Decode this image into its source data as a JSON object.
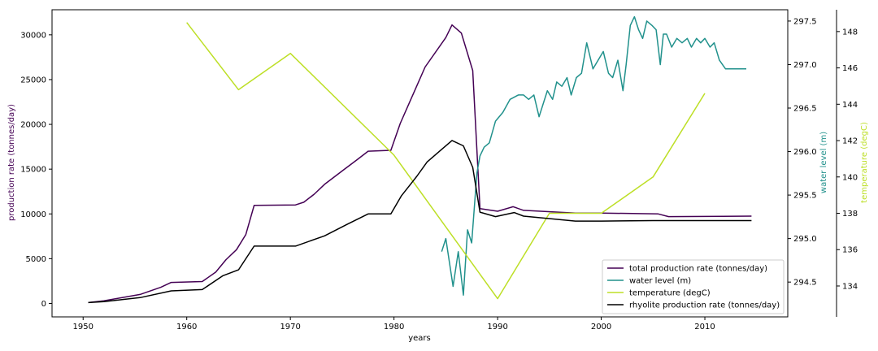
{
  "chart_data": {
    "type": "line",
    "xlabel": "years",
    "x_ticks": [
      1950,
      1960,
      1970,
      1980,
      1990,
      2000,
      2010
    ],
    "xlim": [
      1947,
      2018
    ],
    "axes": {
      "left": {
        "label": "production rate (tonnes/day)",
        "color": "#440154",
        "ylim": [
          -1500,
          32800
        ],
        "ticks": [
          0,
          5000,
          10000,
          15000,
          20000,
          25000,
          30000
        ]
      },
      "right1": {
        "label": "water level (m)",
        "color": "#21918c",
        "ylim": [
          294.1,
          297.63
        ],
        "ticks": [
          294.5,
          295.0,
          295.5,
          296.0,
          296.5,
          297.0,
          297.5
        ]
      },
      "right2": {
        "label": "temperature (degC)",
        "color": "#bddf26",
        "ylim": [
          132.3,
          149.2
        ],
        "ticks": [
          134,
          136,
          138,
          140,
          142,
          144,
          146,
          148
        ]
      }
    },
    "legend_position": "lower-right",
    "series": [
      {
        "name": "total production rate (tonnes/day)",
        "axis": "left",
        "color": "#440154",
        "x": [
          1950.5,
          1952,
          1954,
          1955.5,
          1957.5,
          1958.5,
          1961.5,
          1962.8,
          1963.8,
          1964.8,
          1965.7,
          1966.5,
          1970.5,
          1971.3,
          1972.3,
          1973.3,
          1975.0,
          1976.5,
          1977.5,
          1979.7,
          1980.6,
          1983.0,
          1985.0,
          1985.6,
          1986.5,
          1987.6,
          1988.3,
          1990.0,
          1991.5,
          1992.5,
          1997.5,
          2000.0,
          2005.5,
          2006.5,
          2014.5
        ],
        "y": [
          100,
          300,
          700,
          1000,
          1800,
          2350,
          2450,
          3500,
          4900,
          6000,
          7700,
          10950,
          11000,
          11300,
          12200,
          13300,
          14800,
          16100,
          17000,
          17100,
          20100,
          26400,
          29700,
          31100,
          30200,
          26000,
          10600,
          10300,
          10800,
          10400,
          10100,
          10100,
          10000,
          9700,
          9750
        ]
      },
      {
        "name": "water level (m)",
        "axis": "right1",
        "color": "#21918c",
        "x": [
          1984.6,
          1985.0,
          1985.7,
          1986.2,
          1986.7,
          1987.1,
          1987.5,
          1988.0,
          1988.3,
          1988.7,
          1989.2,
          1989.8,
          1990.5,
          1991.2,
          1992.0,
          1992.5,
          1993.0,
          1993.5,
          1994.0,
          1994.4,
          1994.8,
          1995.3,
          1995.7,
          1996.2,
          1996.7,
          1997.1,
          1997.6,
          1998.1,
          1998.6,
          1999.2,
          1999.7,
          2000.2,
          2000.7,
          2001.1,
          2001.6,
          2002.1,
          2002.4,
          2002.8,
          2003.2,
          2003.6,
          2004.0,
          2004.4,
          2004.9,
          2005.3,
          2005.7,
          2006.0,
          2006.3,
          2006.8,
          2007.3,
          2007.8,
          2008.3,
          2008.7,
          2009.2,
          2009.6,
          2010.0,
          2010.5,
          2010.9,
          2011.4,
          2012.0,
          2013.0,
          2014.0
        ],
        "y": [
          294.85,
          295.0,
          294.45,
          294.85,
          294.35,
          295.1,
          294.95,
          295.75,
          295.95,
          296.05,
          296.1,
          296.35,
          296.45,
          296.6,
          296.65,
          296.65,
          296.6,
          296.65,
          296.4,
          296.55,
          296.7,
          296.6,
          296.8,
          296.75,
          296.85,
          296.65,
          296.85,
          296.9,
          297.25,
          296.95,
          297.05,
          297.15,
          296.9,
          296.85,
          297.05,
          296.7,
          297.0,
          297.45,
          297.55,
          297.4,
          297.3,
          297.5,
          297.45,
          297.4,
          297.0,
          297.35,
          297.35,
          297.2,
          297.3,
          297.25,
          297.3,
          297.2,
          297.3,
          297.25,
          297.3,
          297.2,
          297.25,
          297.05,
          296.95,
          296.95,
          296.95
        ]
      },
      {
        "name": "temperature (degC)",
        "axis": "right2",
        "color": "#bddf26",
        "x": [
          1960,
          1965,
          1970,
          1980,
          1990,
          1995,
          2000,
          2005,
          2010
        ],
        "y": [
          148.5,
          144.8,
          146.8,
          141.2,
          133.3,
          138.0,
          138.0,
          140.0,
          144.6
        ]
      },
      {
        "name": "rhyolite production rate (tonnes/day)",
        "axis": "left",
        "color": "#000000",
        "x": [
          1950.5,
          1952,
          1955.5,
          1958.5,
          1961.5,
          1963.5,
          1965.0,
          1966.5,
          1970.5,
          1973.3,
          1975.5,
          1977.5,
          1979.7,
          1980.7,
          1982.2,
          1983.2,
          1984.7,
          1985.6,
          1986.7,
          1987.6,
          1988.3,
          1989.8,
          1991.6,
          1992.5,
          1997.5,
          2000.0,
          2005.0,
          2014.5
        ],
        "y": [
          100,
          200,
          650,
          1400,
          1550,
          3100,
          3750,
          6400,
          6400,
          7550,
          8850,
          10000,
          10000,
          12000,
          14200,
          15800,
          17300,
          18200,
          17600,
          15200,
          10200,
          9700,
          10150,
          9750,
          9200,
          9200,
          9250,
          9250
        ]
      }
    ]
  }
}
